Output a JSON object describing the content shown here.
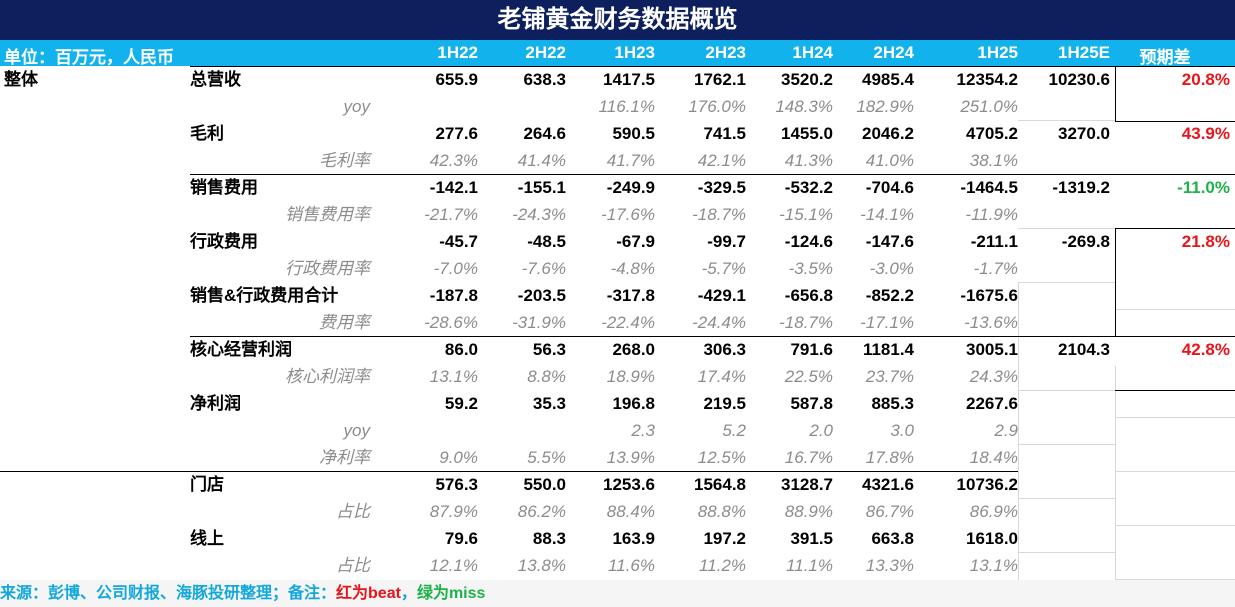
{
  "title": "老铺黄金财务数据概览",
  "header": {
    "unit": "单位：百万元，人民币",
    "columns": [
      "1H22",
      "2H22",
      "1H23",
      "2H23",
      "1H24",
      "2H24",
      "1H25",
      "1H25E",
      "预期差"
    ]
  },
  "groups": {
    "total": "整体"
  },
  "rows": [
    {
      "label": "总营收",
      "values": [
        "655.9",
        "638.3",
        "1417.5",
        "1762.1",
        "3520.2",
        "4985.4",
        "12354.2"
      ],
      "estimate": "10230.6",
      "diff": "20.8%",
      "diff_color": "red"
    },
    {
      "sub": "yoy",
      "values": [
        "",
        "",
        "116.1%",
        "176.0%",
        "148.3%",
        "182.9%",
        "251.0%"
      ]
    },
    {
      "label": "毛利",
      "values": [
        "277.6",
        "264.6",
        "590.5",
        "741.5",
        "1455.0",
        "2046.2",
        "4705.2"
      ],
      "estimate": "3270.0",
      "diff": "43.9%",
      "diff_color": "red"
    },
    {
      "sub": "毛利率",
      "values": [
        "42.3%",
        "41.4%",
        "41.7%",
        "42.1%",
        "41.3%",
        "41.0%",
        "38.1%"
      ]
    },
    {
      "label": "销售费用",
      "values": [
        "-142.1",
        "-155.1",
        "-249.9",
        "-329.5",
        "-532.2",
        "-704.6",
        "-1464.5"
      ],
      "estimate": "-1319.2",
      "diff": "-11.0%",
      "diff_color": "green"
    },
    {
      "sub": "销售费用率",
      "values": [
        "-21.7%",
        "-24.3%",
        "-17.6%",
        "-18.7%",
        "-15.1%",
        "-14.1%",
        "-11.9%"
      ]
    },
    {
      "label": "行政费用",
      "values": [
        "-45.7",
        "-48.5",
        "-67.9",
        "-99.7",
        "-124.6",
        "-147.6",
        "-211.1"
      ],
      "estimate": "-269.8",
      "diff": "21.8%",
      "diff_color": "red"
    },
    {
      "sub": "行政费用率",
      "values": [
        "-7.0%",
        "-7.6%",
        "-4.8%",
        "-5.7%",
        "-3.5%",
        "-3.0%",
        "-1.7%"
      ]
    },
    {
      "label": "销售&行政费用合计",
      "values": [
        "-187.8",
        "-203.5",
        "-317.8",
        "-429.1",
        "-656.8",
        "-852.2",
        "-1675.6"
      ],
      "estimate": "",
      "diff": ""
    },
    {
      "sub": "费用率",
      "values": [
        "-28.6%",
        "-31.9%",
        "-22.4%",
        "-24.4%",
        "-18.7%",
        "-17.1%",
        "-13.6%"
      ]
    },
    {
      "label": "核心经营利润",
      "values": [
        "86.0",
        "56.3",
        "268.0",
        "306.3",
        "791.6",
        "1181.4",
        "3005.1"
      ],
      "estimate": "2104.3",
      "diff": "42.8%",
      "diff_color": "red"
    },
    {
      "sub": "核心利润率",
      "values": [
        "13.1%",
        "8.8%",
        "18.9%",
        "17.4%",
        "22.5%",
        "23.7%",
        "24.3%"
      ]
    },
    {
      "label": "净利润",
      "values": [
        "59.2",
        "35.3",
        "196.8",
        "219.5",
        "587.8",
        "885.3",
        "2267.6"
      ],
      "estimate": "",
      "diff": ""
    },
    {
      "sub": "yoy",
      "values": [
        "",
        "",
        "2.3",
        "5.2",
        "2.0",
        "3.0",
        "2.9"
      ]
    },
    {
      "sub": "净利率",
      "values": [
        "9.0%",
        "5.5%",
        "13.9%",
        "12.5%",
        "16.7%",
        "17.8%",
        "18.4%"
      ]
    },
    {
      "label": "门店",
      "values": [
        "576.3",
        "550.0",
        "1253.6",
        "1564.8",
        "3128.7",
        "4321.6",
        "10736.2"
      ],
      "estimate": "",
      "diff": ""
    },
    {
      "sub": "占比",
      "values": [
        "87.9%",
        "86.2%",
        "88.4%",
        "88.8%",
        "88.9%",
        "86.7%",
        "86.9%"
      ]
    },
    {
      "label": "线上",
      "values": [
        "79.6",
        "88.3",
        "163.9",
        "197.2",
        "391.5",
        "663.8",
        "1618.0"
      ],
      "estimate": "",
      "diff": ""
    },
    {
      "sub": "占比",
      "values": [
        "12.1%",
        "13.8%",
        "11.6%",
        "11.2%",
        "11.1%",
        "13.3%",
        "13.1%"
      ]
    }
  ],
  "footer": {
    "source": "来源：彭博、公司财报、海豚投研整理；备注：",
    "red_note": "红为beat",
    "sep": "，",
    "green_note": "绿为miss"
  },
  "colors": {
    "title_bg": "#0d1f5c",
    "header_bg": "#12b2ec",
    "beat": "#e8141a",
    "miss": "#1fb24a"
  }
}
